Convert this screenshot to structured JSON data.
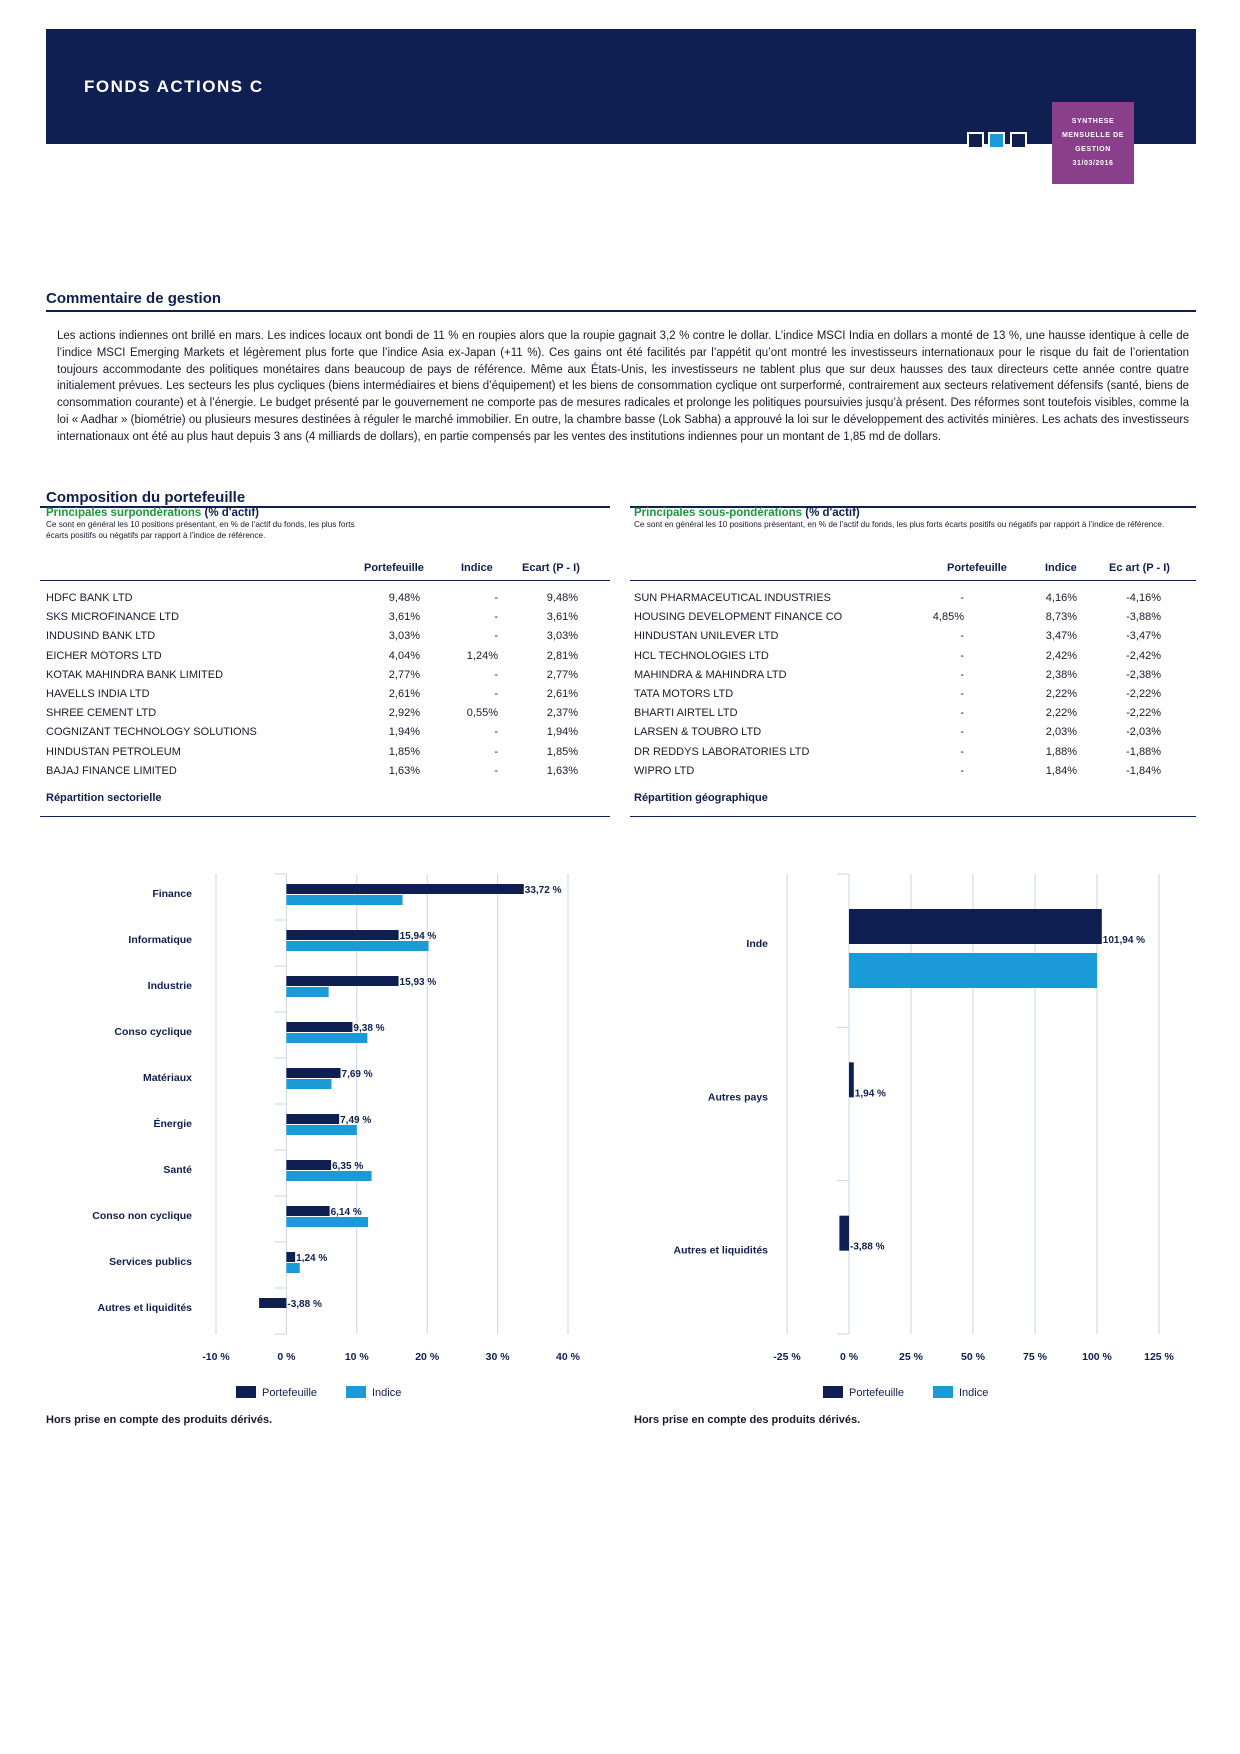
{
  "header": {
    "fund_name": "FONDS ACTIONS C",
    "badge": [
      "SYNTHESE",
      "MENSUELLE DE",
      "GESTION",
      "31/03/2016"
    ]
  },
  "commentary": {
    "title": "Commentaire  de  gestion",
    "text": "Les actions indiennes ont brillé en mars. Les indices locaux ont bondi de 11 % en roupies alors que la roupie gagnait 3,2 % contre le dollar. L’indice MSCI India en dollars a monté de 13 %, une hausse identique à celle de l’indice MSCI Emerging Markets et légèrement plus forte que l’indice Asia ex-Japan (+11 %). Ces gains ont été facilités par l’appétit qu’ont montré les investisseurs internationaux pour le risque du fait de l’orientation toujours accommodante des politiques monétaires dans beaucoup de pays de référence. Même aux États-Unis, les investisseurs ne tablent plus que sur deux hausses des taux directeurs cette année contre quatre initialement prévues. Les secteurs les plus cycliques (biens intermédiaires et biens d’équipement) et les biens de consommation cyclique ont surperformé, contrairement aux secteurs relativement défensifs (santé, biens de consommation courante) et à l’énergie. Le budget présenté par le gouvernement ne comporte pas de mesures radicales et prolonge les politiques poursuivies jusqu’à présent. Des réformes sont toutefois visibles, comme la loi « Aadhar » (biométrie) ou plusieurs mesures destinées à réguler le marché immobilier. En outre, la chambre basse (Lok Sabha) a approuvé la loi sur le développement des activités minières. Les achats des investisseurs internationaux ont été au plus haut depuis 3 ans (4 milliards de dollars), en partie compensés par les ventes des institutions indiennes pour un montant de 1,85 md de dollars."
  },
  "composition": {
    "title": "Composition du portefeuille",
    "over": {
      "heading_green": "Principales  surpondérations",
      "heading_unit": "(% d'actif)",
      "note": "Ce sont en général les 10 positions présentant, en % de l’actif du fonds, les plus forts écarts positifs ou négatifs par rapport à l’indice de référence.",
      "columns": [
        "Portefeuille",
        "Indice",
        "Ecart (P  -  I)"
      ],
      "rows": [
        {
          "name": "HDFC BANK LTD",
          "p": "9,48%",
          "i": "-",
          "e": "9,48%"
        },
        {
          "name": "SKS MICROFINANCE LTD",
          "p": "3,61%",
          "i": "-",
          "e": "3,61%"
        },
        {
          "name": "INDUSIND BANK LTD",
          "p": "3,03%",
          "i": "-",
          "e": "3,03%"
        },
        {
          "name": "EICHER MOTORS LTD",
          "p": "4,04%",
          "i": "1,24%",
          "e": "2,81%"
        },
        {
          "name": "KOTAK MAHINDRA BANK LIMITED",
          "p": "2,77%",
          "i": "-",
          "e": "2,77%"
        },
        {
          "name": "HAVELLS INDIA LTD",
          "p": "2,61%",
          "i": "-",
          "e": "2,61%"
        },
        {
          "name": "SHREE CEMENT LTD",
          "p": "2,92%",
          "i": "0,55%",
          "e": "2,37%"
        },
        {
          "name": "COGNIZANT TECHNOLOGY SOLUTIONS",
          "p": "1,94%",
          "i": "-",
          "e": "1,94%"
        },
        {
          "name": "HINDUSTAN PETROLEUM",
          "p": "1,85%",
          "i": "-",
          "e": "1,85%"
        },
        {
          "name": "BAJAJ FINANCE LIMITED",
          "p": "1,63%",
          "i": "-",
          "e": "1,63%"
        }
      ],
      "subsection": "Répartition  sectorielle"
    },
    "under": {
      "heading_green": "Principales sous-pondérations",
      "heading_unit": "(% d'actif)",
      "note": "Ce sont en général les 10 positions présentant, en % de l’actif du fonds, les plus forts écarts positifs ou négatifs par rapport à l’indice de référence.",
      "columns": [
        "Portefeuille",
        "Indice",
        "Ec art (P  -  I)"
      ],
      "rows": [
        {
          "name": "SUN PHARMACEUTICAL INDUSTRIES",
          "p": "-",
          "i": "4,16%",
          "e": "-4,16%"
        },
        {
          "name": "HOUSING DEVELOPMENT FINANCE CO",
          "p": "4,85%",
          "i": "8,73%",
          "e": "-3,88%"
        },
        {
          "name": "HINDUSTAN UNILEVER LTD",
          "p": "-",
          "i": "3,47%",
          "e": "-3,47%"
        },
        {
          "name": "HCL TECHNOLOGIES LTD",
          "p": "-",
          "i": "2,42%",
          "e": "-2,42%"
        },
        {
          "name": "MAHINDRA & MAHINDRA LTD",
          "p": "-",
          "i": "2,38%",
          "e": "-2,38%"
        },
        {
          "name": "TATA MOTORS LTD",
          "p": "-",
          "i": "2,22%",
          "e": "-2,22%"
        },
        {
          "name": "BHARTI AIRTEL LTD",
          "p": "-",
          "i": "2,22%",
          "e": "-2,22%"
        },
        {
          "name": "LARSEN & TOUBRO LTD",
          "p": "-",
          "i": "2,03%",
          "e": "-2,03%"
        },
        {
          "name": "DR REDDYS LABORATORIES LTD",
          "p": "-",
          "i": "1,88%",
          "e": "-1,88%"
        },
        {
          "name": "WIPRO LTD",
          "p": "-",
          "i": "1,84%",
          "e": "-1,84%"
        }
      ],
      "subsection": "Répartition  géographique"
    }
  },
  "colors": {
    "portefeuille": "#0f1f52",
    "indice": "#1a9ad6",
    "grid": "#c9d6e6"
  },
  "footnote": "Hors prise en compte des produits dérivés.",
  "chart_data": [
    {
      "type": "bar",
      "orientation": "horizontal",
      "categories": [
        "Finance",
        "Informatique",
        "Industrie",
        "Conso cyclique",
        "Matériaux",
        "Énergie",
        "Santé",
        "Conso non cyclique",
        "Services publics",
        "Autres et liquidités"
      ],
      "series": [
        {
          "name": "Portefeuille",
          "values": [
            33.72,
            15.94,
            15.93,
            9.38,
            7.69,
            7.49,
            6.35,
            6.14,
            1.24,
            -3.88
          ],
          "labels": [
            "33,72 %",
            "15,94 %",
            "15,93 %",
            "9,38 %",
            "7,69 %",
            "7,49 %",
            "6,35 %",
            "6,14 %",
            "1,24 %",
            "-3,88 %"
          ]
        },
        {
          "name": "Indice",
          "values": [
            16.5,
            20.2,
            6.0,
            11.5,
            6.4,
            10.0,
            12.1,
            11.6,
            1.9,
            0
          ]
        }
      ],
      "xlim": [
        -10,
        40
      ],
      "ticks": [
        -10,
        0,
        10,
        20,
        30,
        40
      ],
      "tick_labels": [
        "-10 %",
        "0 %",
        "10 %",
        "20 %",
        "30 %",
        "40 %"
      ],
      "grid": true,
      "legend": "bottom"
    },
    {
      "type": "bar",
      "orientation": "horizontal",
      "categories": [
        "Inde",
        "Autres pays",
        "Autres et liquidités"
      ],
      "series": [
        {
          "name": "Portefeuille",
          "values": [
            101.94,
            1.94,
            -3.88
          ],
          "labels": [
            "101,94 %",
            "1,94 %",
            "-3,88 %"
          ]
        },
        {
          "name": "Indice",
          "values": [
            100,
            0,
            0
          ]
        }
      ],
      "xlim": [
        -25,
        125
      ],
      "ticks": [
        -25,
        0,
        25,
        50,
        75,
        100,
        125
      ],
      "tick_labels": [
        "-25 %",
        "0 %",
        "25 %",
        "50 %",
        "75 %",
        "100 %",
        "125 %"
      ],
      "grid": true,
      "legend": "bottom"
    }
  ]
}
